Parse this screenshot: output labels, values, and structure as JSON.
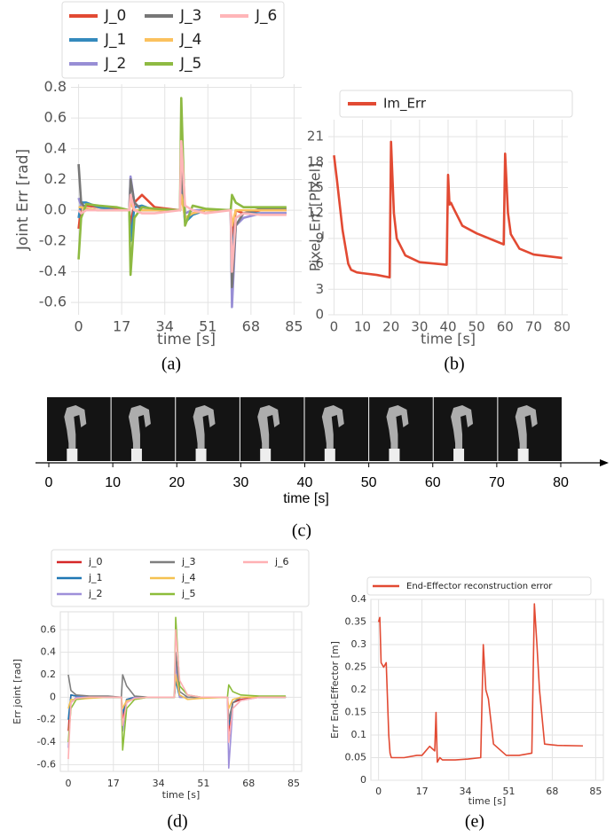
{
  "chart_data": [
    {
      "type": "line",
      "caption": "(a)",
      "xlabel": "time [s]",
      "ylabel": "Joint Err [rad]",
      "grid": true,
      "xlim": [
        -3,
        88
      ],
      "ylim": [
        -0.68,
        0.82
      ],
      "xticks": [
        0,
        17,
        34,
        51,
        68,
        85
      ],
      "yticks": [
        0.8,
        0.6,
        0.4,
        0.2,
        {
          "value": 0,
          "label": "0.0"
        },
        -0.2,
        -0.4,
        -0.6
      ],
      "x": [
        0,
        1,
        3,
        8,
        15,
        20,
        20.5,
        22,
        25,
        30,
        40,
        40.5,
        42,
        45,
        50,
        60,
        60.5,
        62,
        65,
        72,
        82
      ],
      "series": [
        {
          "name": "J_0",
          "color": "#e24a33",
          "values": [
            -0.12,
            0.02,
            0.03,
            0.02,
            0.01,
            0,
            -0.1,
            0.05,
            0.1,
            0.02,
            0,
            0.15,
            -0.05,
            -0.02,
            0,
            0,
            -0.2,
            0,
            -0.02,
            0,
            0
          ]
        },
        {
          "name": "J_1",
          "color": "#348abd",
          "values": [
            -0.05,
            0.05,
            0.05,
            0.02,
            0,
            0,
            -0.2,
            0.02,
            0.03,
            0,
            0,
            0.2,
            -0.08,
            -0.03,
            0,
            0,
            -0.3,
            -0.05,
            -0.02,
            -0.02,
            -0.02
          ]
        },
        {
          "name": "J_2",
          "color": "#988ed5",
          "values": [
            0.08,
            0.03,
            0.01,
            0,
            0,
            0,
            0.22,
            0.05,
            0,
            0,
            0,
            0.45,
            -0.02,
            0,
            0,
            0,
            -0.63,
            -0.1,
            -0.05,
            -0.02,
            -0.02
          ]
        },
        {
          "name": "J_3",
          "color": "#777777",
          "values": [
            0.3,
            0.05,
            0.01,
            0,
            0,
            0,
            0.2,
            0.05,
            0,
            0,
            0,
            0.3,
            -0.05,
            -0.02,
            0,
            0,
            -0.5,
            -0.1,
            -0.02,
            0.01,
            0.01
          ]
        },
        {
          "name": "J_4",
          "color": "#fbc15e",
          "values": [
            0.02,
            0.02,
            0.01,
            0,
            0,
            0,
            0.05,
            0,
            0,
            0,
            0,
            0.1,
            -0.05,
            -0.02,
            0,
            0,
            -0.1,
            0,
            0,
            0,
            0
          ]
        },
        {
          "name": "J_5",
          "color": "#8eba42",
          "values": [
            -0.32,
            -0.05,
            0.04,
            0.03,
            0.02,
            0,
            -0.42,
            -0.05,
            0.02,
            0.01,
            0,
            0.73,
            -0.1,
            0.03,
            0.01,
            0,
            0.1,
            0.05,
            0.02,
            0.02,
            0.02
          ]
        },
        {
          "name": "J_6",
          "color": "#ffb5b8",
          "values": [
            0,
            -0.02,
            0,
            0,
            0,
            0,
            0.1,
            0,
            -0.02,
            -0.02,
            0,
            0.45,
            0.03,
            0,
            -0.02,
            0,
            -0.4,
            -0.05,
            -0.02,
            -0.03,
            -0.03
          ]
        }
      ]
    },
    {
      "type": "line",
      "caption": "(b)",
      "xlabel": "time [s]",
      "ylabel": "Pixel_Err [Pixel]",
      "grid": true,
      "xlim": [
        -2,
        82
      ],
      "ylim": [
        0,
        23
      ],
      "xticks": [
        0,
        10,
        20,
        30,
        40,
        50,
        60,
        70,
        80
      ],
      "yticks": [
        0,
        3,
        6,
        9,
        12,
        15,
        18,
        21
      ],
      "x": [
        0,
        1,
        2,
        3,
        4,
        5,
        6,
        8,
        10,
        15,
        19.5,
        20,
        21,
        22,
        25,
        30,
        39.5,
        40,
        40.5,
        41,
        42,
        45,
        50,
        59.5,
        60,
        61,
        62,
        65,
        70,
        80
      ],
      "series": [
        {
          "name": "Im_Err",
          "color": "#e24a33",
          "values": [
            18.8,
            16,
            13,
            10,
            8,
            6,
            5.3,
            5,
            4.9,
            4.7,
            4.4,
            20.4,
            12,
            9,
            7,
            6.2,
            5.9,
            16.5,
            13,
            13.2,
            12.5,
            10.5,
            9.6,
            8.3,
            19,
            12,
            9.5,
            7.8,
            7.1,
            6.7
          ]
        }
      ]
    },
    {
      "type": "image-strip",
      "caption": "(c)",
      "xlabel": "time [s]",
      "xlim": [
        0,
        80
      ],
      "xticks": [
        0,
        10,
        20,
        30,
        40,
        50,
        60,
        70,
        80
      ]
    },
    {
      "type": "line",
      "caption": "(d)",
      "xlabel": "time [s]",
      "ylabel": "Err joint [rad]",
      "grid": true,
      "xlim": [
        -3,
        88
      ],
      "ylim": [
        -0.66,
        0.76
      ],
      "xticks": [
        0,
        17,
        34,
        51,
        68,
        85
      ],
      "yticks": [
        0.6,
        0.4,
        0.2,
        0,
        -0.2,
        -0.4,
        -0.6
      ],
      "x": [
        0,
        1,
        3,
        8,
        15,
        20,
        20.5,
        22,
        25,
        30,
        40,
        40.5,
        42,
        45,
        50,
        60,
        60.5,
        62,
        65,
        72,
        82
      ],
      "series": [
        {
          "name": "j_0",
          "color": "#d62728",
          "values": [
            -0.3,
            0.02,
            0.01,
            0,
            0,
            0,
            -0.2,
            -0.02,
            0,
            0,
            0,
            0.2,
            0,
            0,
            0,
            0,
            -0.3,
            -0.05,
            -0.02,
            0,
            0
          ]
        },
        {
          "name": "j_1",
          "color": "#1f77b4",
          "values": [
            -0.2,
            0.02,
            0.01,
            0,
            0,
            0,
            -0.15,
            -0.02,
            0,
            0,
            0,
            0.15,
            0,
            0,
            0,
            0,
            -0.25,
            -0.05,
            0,
            0,
            0
          ]
        },
        {
          "name": "j_2",
          "color": "#9e8fd9",
          "values": [
            -0.45,
            -0.05,
            0,
            0,
            0,
            0,
            -0.3,
            -0.05,
            0,
            0,
            0,
            0.3,
            0,
            0,
            0,
            0,
            -0.63,
            -0.1,
            -0.03,
            0,
            0
          ]
        },
        {
          "name": "j_3",
          "color": "#7f7f7f",
          "values": [
            0.2,
            0.06,
            0.02,
            0.01,
            0.01,
            0,
            0.2,
            0.1,
            0.01,
            0,
            0,
            0.4,
            0.05,
            0,
            0,
            0,
            -0.2,
            -0.05,
            0,
            0,
            0
          ]
        },
        {
          "name": "j_4",
          "color": "#f5c150",
          "values": [
            -0.1,
            -0.02,
            -0.02,
            -0.01,
            0,
            0,
            -0.1,
            -0.03,
            -0.02,
            0,
            0,
            0.2,
            0.02,
            -0.02,
            -0.01,
            0,
            -0.1,
            -0.02,
            0,
            0,
            0
          ]
        },
        {
          "name": "j_5",
          "color": "#8cbd3a",
          "values": [
            -0.4,
            -0.1,
            -0.02,
            0,
            0,
            0,
            -0.47,
            -0.1,
            -0.02,
            0,
            0,
            0.71,
            0.1,
            0.02,
            0,
            0,
            0.11,
            0.05,
            0.02,
            0.01,
            0.01
          ]
        },
        {
          "name": "j_6",
          "color": "#ffb0b3",
          "values": [
            -0.55,
            -0.05,
            -0.01,
            0,
            0,
            0,
            -0.25,
            -0.05,
            -0.01,
            0,
            0,
            0.6,
            0.15,
            0.02,
            0,
            0,
            -0.4,
            -0.1,
            -0.03,
            0,
            0
          ]
        }
      ]
    },
    {
      "type": "line",
      "caption": "(e)",
      "xlabel": "time [s]",
      "ylabel": "Err End-Effector [m]",
      "grid": true,
      "xlim": [
        -3,
        88
      ],
      "ylim": [
        0,
        0.4
      ],
      "xticks": [
        0,
        17,
        34,
        51,
        68,
        85
      ],
      "yticks": [
        0,
        0.05,
        0.1,
        0.15,
        0.2,
        0.25,
        0.3,
        0.35,
        0.4
      ],
      "x": [
        0,
        0.5,
        1,
        2,
        3,
        4,
        4.5,
        5,
        10,
        15,
        17,
        20,
        22,
        22.5,
        23,
        24,
        25,
        30,
        35,
        40,
        41,
        42,
        43,
        45,
        50,
        55,
        60,
        61,
        62,
        63,
        65,
        70,
        80
      ],
      "series": [
        {
          "name": "End-Effector reconstruction error",
          "color": "#e24a33",
          "values": [
            0.35,
            0.36,
            0.26,
            0.25,
            0.26,
            0.1,
            0.06,
            0.05,
            0.05,
            0.055,
            0.055,
            0.075,
            0.065,
            0.15,
            0.04,
            0.05,
            0.045,
            0.045,
            0.047,
            0.05,
            0.3,
            0.2,
            0.18,
            0.08,
            0.055,
            0.055,
            0.06,
            0.39,
            0.3,
            0.2,
            0.08,
            0.077,
            0.076
          ]
        }
      ]
    }
  ]
}
